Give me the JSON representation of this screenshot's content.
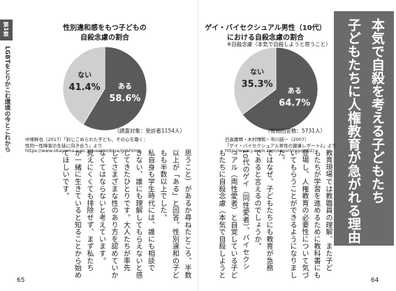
{
  "margin": {
    "chapter": "第1章",
    "chapter_title": "LGBTをとりかこむ環境の今とこれから"
  },
  "chart_data": [
    {
      "type": "pie",
      "title": [
        "性別違和感をもつ子どもの",
        "自殺念慮の割合"
      ],
      "categories": [
        "ある",
        "ない"
      ],
      "values": [
        58.6,
        41.4
      ],
      "value_labels": [
        "58.6%",
        "41.4%"
      ],
      "colors": [
        "#5a5a5a",
        "#cfcfcf"
      ],
      "note": "（調査対象：受診者1154人）",
      "source": [
        "中塚幹也（2017）「封じこめられた子ども、その心を聴く：",
        "性同一性障害の生徒に向き合う」より",
        "https://www.okayama-u.ac.jp/user/mikiya/gid.html"
      ]
    },
    {
      "type": "pie",
      "title": [
        "ゲイ・バイセクシュアル男性（10代）",
        "における自殺念慮の割合"
      ],
      "subtitle": "※自殺念慮（本気で自殺しようと思うこと）",
      "categories": [
        "ある",
        "ない"
      ],
      "values": [
        64.7,
        35.3
      ],
      "value_labels": [
        "64.7%",
        "35.3%"
      ],
      "colors": [
        "#5a5a5a",
        "#cfcfcf"
      ],
      "note": "（有効回答数：5731人）",
      "source": [
        "日高庸晴・木村博和・市川誠一（2007）",
        "「ゲイ・バイセクシュアル男性の健康レポート2」より",
        "http://www.j-msm.com/report/report02/"
      ]
    }
  ],
  "heading": [
    "本気で自殺を考える子どもたち",
    "子どもたちに人権教育が急がれる理由"
  ],
  "body_right": [
    "教育現場では教職員の理解、また子ど",
    "もたちが学習を進めるために教科書にも",
    "登場し、人権教育の必要性について気づ",
    "いてもらうことができるようになりまし",
    "た。",
    "ではなぜ、子どもたちにも教育が急務",
    "であると言えるのでしょうか。",
    "10代のゲイ（同性愛者）、バイセクシ",
    "ュアル（両性愛者）と自覚している子ど",
    "もたちに自殺念慮（本気で自殺しようと"
  ],
  "body_left": [
    "思うこと）があるか尋ねたところ、半数",
    "以上が「ある」と回答。性別違和の子ど",
    "もも半数以上でした。",
    "私自身も学生時代には、誰にも相談で",
    "きない、誰にも理解してもらえないと感",
    "じてきたひとりです。大人たちが率先",
    "してさまざまな性のあり方を認めていか",
    "なくてはならないと考えています。",
    "見えにくくても排除せず、まず私たち",
    "が一緒に生きていると知ることから始め",
    "てほしいです。"
  ],
  "page_numbers": [
    "65",
    "64"
  ]
}
